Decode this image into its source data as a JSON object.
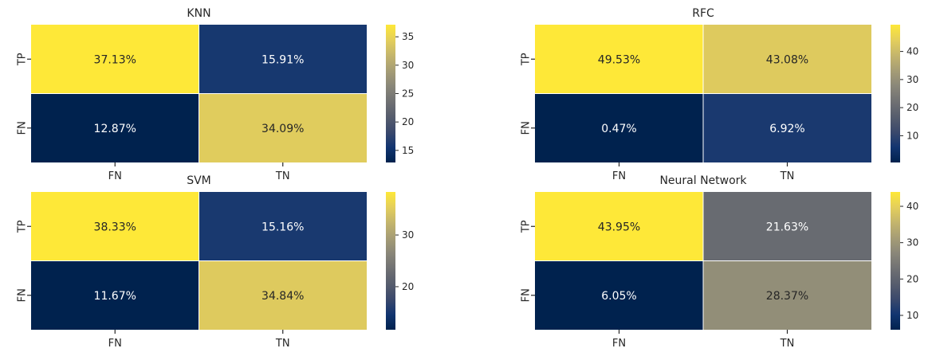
{
  "colormap": {
    "name": "cividis",
    "stops": [
      "#00224e",
      "#123570",
      "#3b496c",
      "#575d6d",
      "#707173",
      "#8a8779",
      "#a69d75",
      "#c4b56c",
      "#e4cf5b",
      "#fee838"
    ]
  },
  "grid_line_color": "#ffffff",
  "chart_data": [
    {
      "type": "heatmap",
      "title": "KNN",
      "x_ticks": [
        "FN",
        "TN"
      ],
      "y_ticks": [
        "TP",
        "FN"
      ],
      "cells": [
        [
          37.13,
          15.91
        ],
        [
          12.87,
          34.09
        ]
      ],
      "labels": [
        [
          "37.13%",
          "15.91%"
        ],
        [
          "12.87%",
          "34.09%"
        ]
      ],
      "vmin": 12.87,
      "vmax": 37.13,
      "colorbar_ticks": [
        15,
        20,
        25,
        30,
        35
      ]
    },
    {
      "type": "heatmap",
      "title": "RFC",
      "x_ticks": [
        "FN",
        "TN"
      ],
      "y_ticks": [
        "TP",
        "FN"
      ],
      "cells": [
        [
          49.53,
          43.08
        ],
        [
          0.47,
          6.92
        ]
      ],
      "labels": [
        [
          "49.53%",
          "43.08%"
        ],
        [
          "0.47%",
          "6.92%"
        ]
      ],
      "vmin": 0.47,
      "vmax": 49.53,
      "colorbar_ticks": [
        10,
        20,
        30,
        40
      ]
    },
    {
      "type": "heatmap",
      "title": "SVM",
      "x_ticks": [
        "FN",
        "TN"
      ],
      "y_ticks": [
        "TP",
        "FN"
      ],
      "cells": [
        [
          38.33,
          15.16
        ],
        [
          11.67,
          34.84
        ]
      ],
      "labels": [
        [
          "38.33%",
          "15.16%"
        ],
        [
          "11.67%",
          "34.84%"
        ]
      ],
      "vmin": 11.67,
      "vmax": 38.33,
      "colorbar_ticks": [
        20,
        30
      ]
    },
    {
      "type": "heatmap",
      "title": "Neural Network",
      "x_ticks": [
        "FN",
        "TN"
      ],
      "y_ticks": [
        "TP",
        "FN"
      ],
      "cells": [
        [
          43.95,
          21.63
        ],
        [
          6.05,
          28.37
        ]
      ],
      "labels": [
        [
          "43.95%",
          "21.63%"
        ],
        [
          "6.05%",
          "28.37%"
        ]
      ],
      "vmin": 6.05,
      "vmax": 43.95,
      "colorbar_ticks": [
        10,
        20,
        30,
        40
      ]
    }
  ]
}
